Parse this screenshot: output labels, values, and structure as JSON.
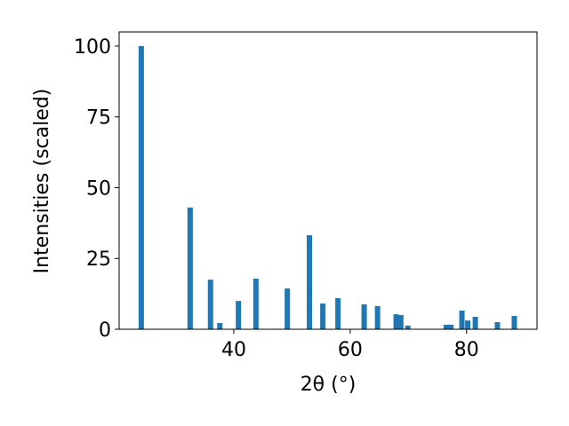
{
  "chart_data": {
    "type": "bar",
    "xlabel": "2θ (°)",
    "ylabel": "Intensities (scaled)",
    "x": [
      24.1,
      32.5,
      36.0,
      37.6,
      40.8,
      43.8,
      49.2,
      53.0,
      55.3,
      57.9,
      62.4,
      64.7,
      67.9,
      68.7,
      69.9,
      76.5,
      77.3,
      79.2,
      80.2,
      81.5,
      85.3,
      88.2
    ],
    "values": [
      100,
      43,
      17.5,
      2.2,
      10,
      17.9,
      14.4,
      33.2,
      9.1,
      11,
      8.8,
      8.2,
      5.3,
      5.0,
      1.3,
      1.6,
      1.6,
      6.6,
      3.1,
      4.4,
      2.5,
      4.7
    ],
    "color": "#1f77b4",
    "xlim": [
      20.3,
      92.1
    ],
    "xticks": [
      40,
      60,
      80
    ],
    "ylim": [
      0,
      105
    ],
    "yticks": [
      0,
      25,
      50,
      75,
      100
    ],
    "grid": false
  }
}
